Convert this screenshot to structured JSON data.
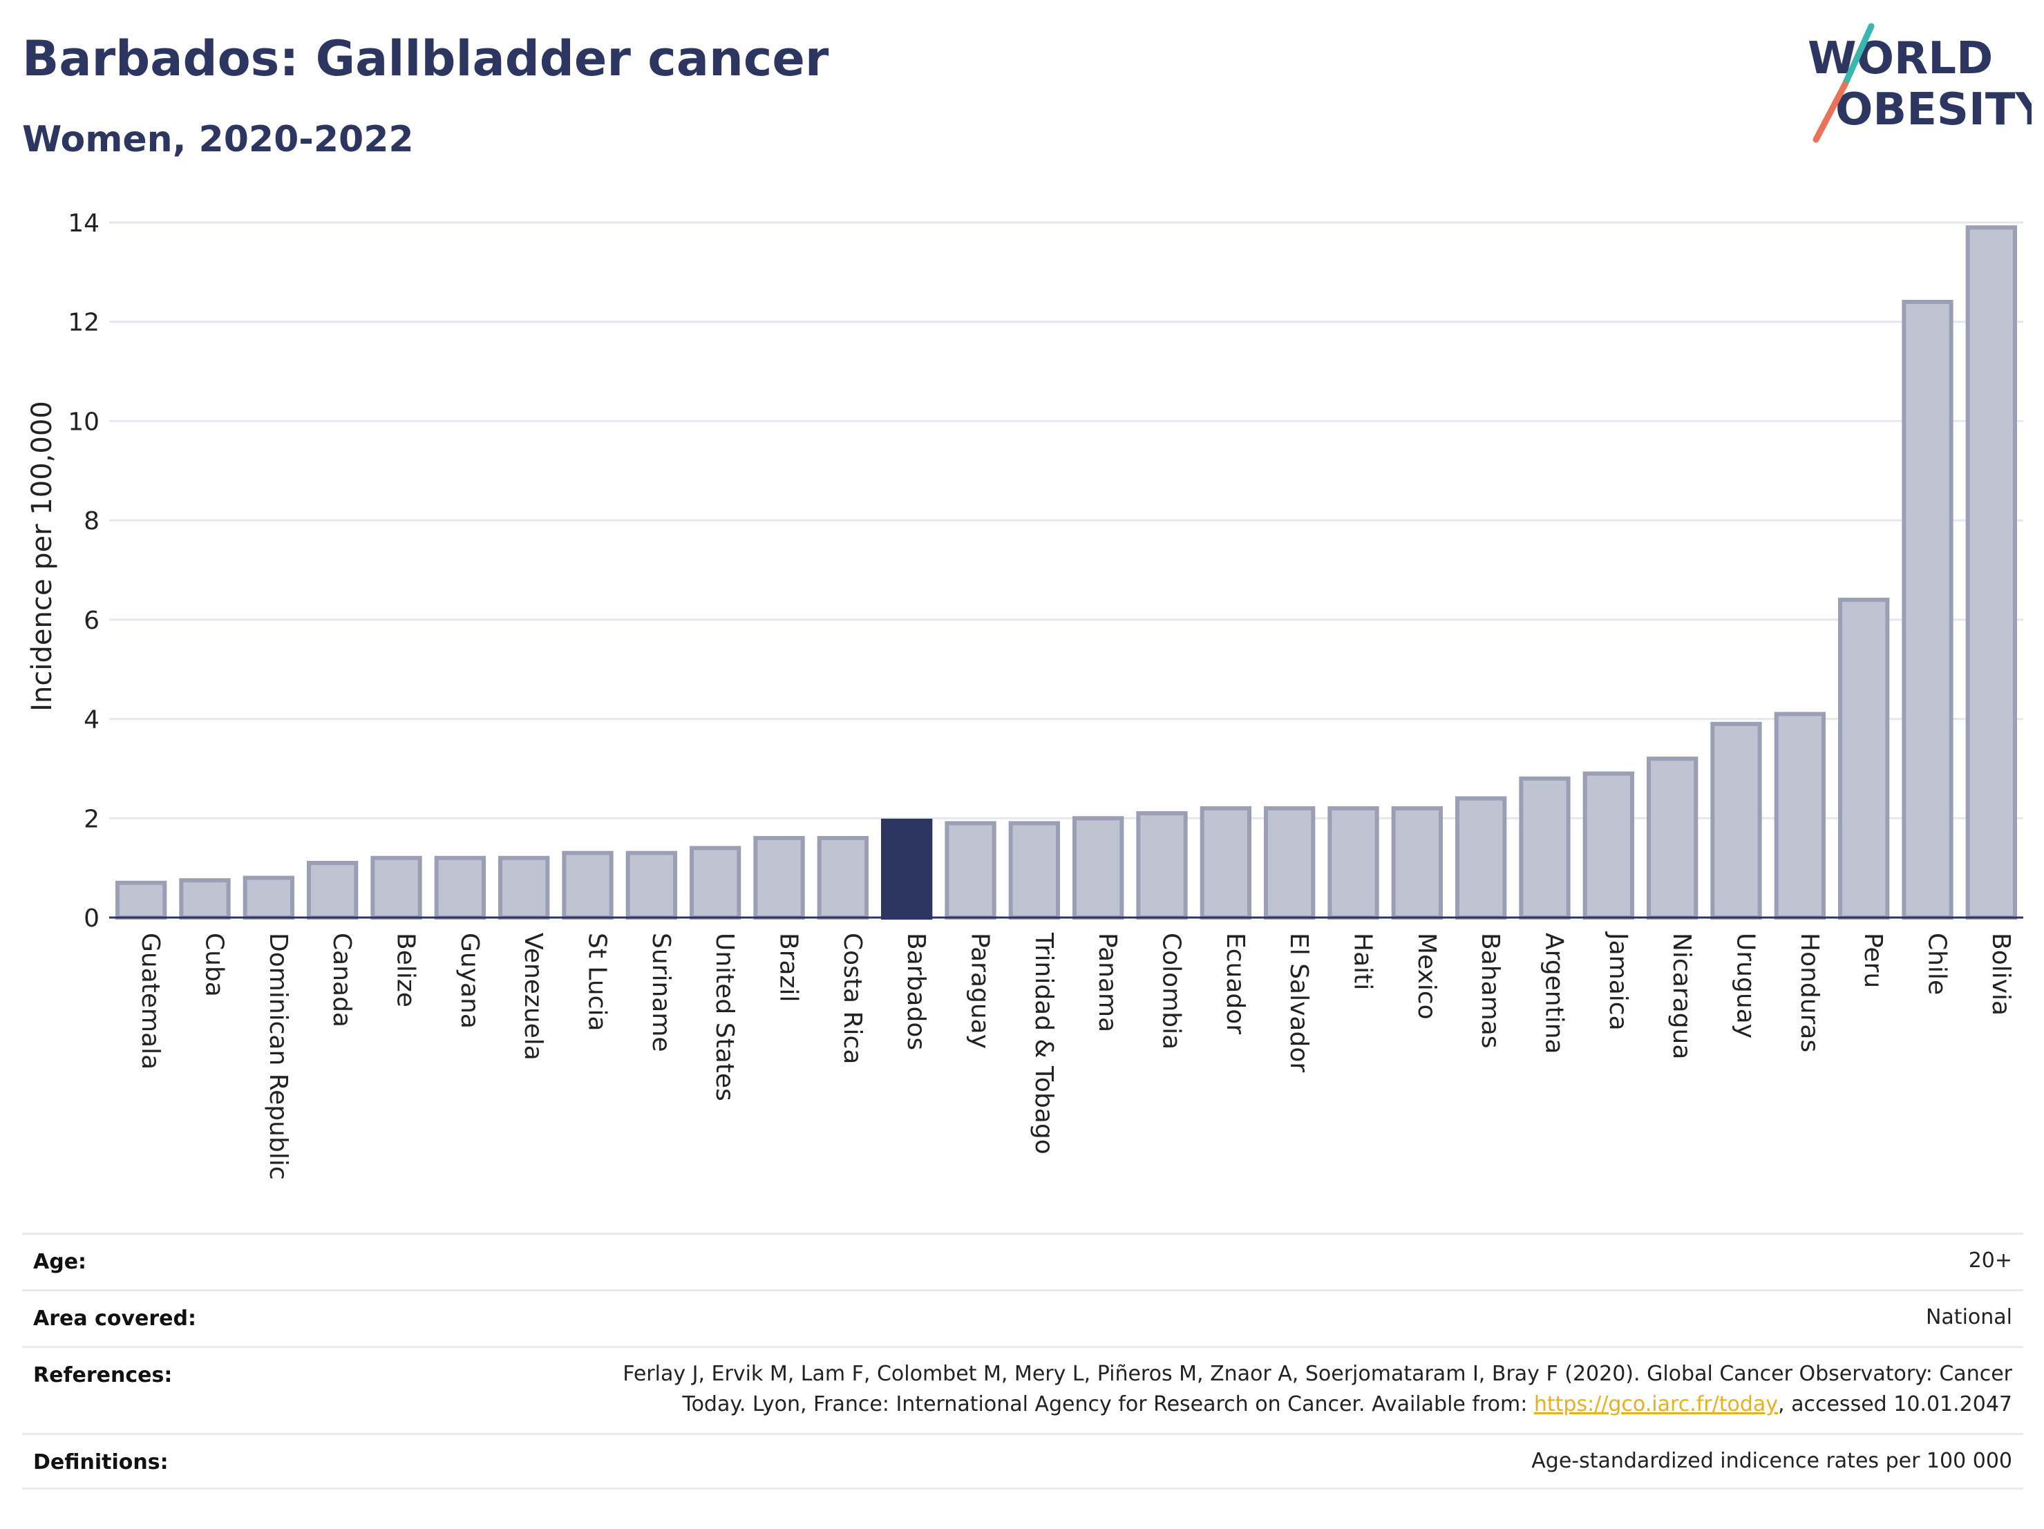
{
  "header": {
    "title": "Barbados: Gallbladder cancer",
    "subtitle": "Women, 2020-2022"
  },
  "logo": {
    "line1": "WORLD",
    "line2": "OBESITY",
    "text_color": "#2d3660",
    "slash_top_color": "#3ab5b0",
    "slash_bottom_color": "#e8735a"
  },
  "chart_data": {
    "type": "bar",
    "ylabel": "Incidence per 100,000",
    "xlabel": "",
    "ylim": [
      0,
      14
    ],
    "yticks": [
      0,
      2,
      4,
      6,
      8,
      10,
      12,
      14
    ],
    "grid": true,
    "highlight": "Barbados",
    "bar_color": "#c0c3d1",
    "bar_edge_color": "#9a9fb5",
    "highlight_color": "#2d3660",
    "categories": [
      "Guatemala",
      "Cuba",
      "Dominican Republic",
      "Canada",
      "Belize",
      "Guyana",
      "Venezuela",
      "St Lucia",
      "Suriname",
      "United States",
      "Brazil",
      "Costa Rica",
      "Barbados",
      "Paraguay",
      "Trinidad & Tobago",
      "Panama",
      "Colombia",
      "Ecuador",
      "El Salvador",
      "Haiti",
      "Mexico",
      "Bahamas",
      "Argentina",
      "Jamaica",
      "Nicaragua",
      "Uruguay",
      "Honduras",
      "Peru",
      "Chile",
      "Bolivia"
    ],
    "values": [
      0.7,
      0.75,
      0.8,
      1.1,
      1.2,
      1.2,
      1.2,
      1.3,
      1.3,
      1.4,
      1.6,
      1.6,
      1.95,
      1.9,
      1.9,
      2.0,
      2.1,
      2.2,
      2.2,
      2.2,
      2.2,
      2.4,
      2.8,
      2.9,
      3.2,
      3.9,
      4.1,
      6.4,
      12.4,
      13.9
    ]
  },
  "meta": {
    "age_label": "Age:",
    "age_value": "20+",
    "area_label": "Area covered:",
    "area_value": "National",
    "references_label": "References:",
    "references_line1": "Ferlay J, Ervik M, Lam F, Colombet M, Mery L, Piñeros M, Znaor A, Soerjomataram I, Bray F (2020). Global Cancer Observatory: Cancer",
    "references_line2_pre": "Today. Lyon, France: International Agency for Research on Cancer. Available from: ",
    "references_link": "https://gco.iarc.fr/today",
    "references_line2_post": ", accessed 10.01.2047",
    "definitions_label": "Definitions:",
    "definitions_value": "Age-standardized indicence rates per 100 000"
  }
}
